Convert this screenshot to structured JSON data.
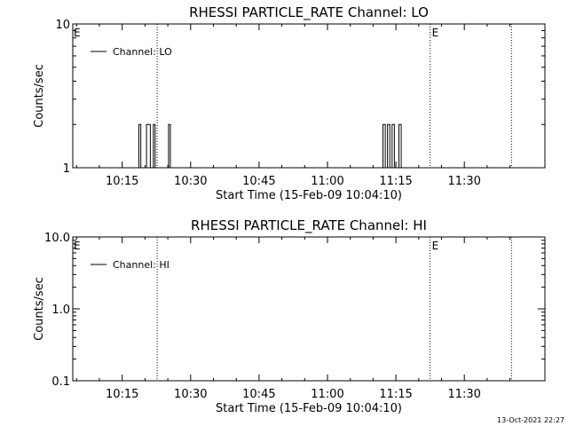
{
  "footer": {
    "timestamp": "13-Oct-2021 22:27"
  },
  "chart_data": [
    {
      "type": "line",
      "title": "RHESSI PARTICLE_RATE Channel: LO",
      "xlabel": "Start Time (15-Feb-09 10:04:10)",
      "ylabel": "Counts/sec",
      "yscale": "log",
      "ylim": [
        1,
        10
      ],
      "y_ticks": [
        "1",
        "10"
      ],
      "x_ticks": [
        "10:15",
        "10:30",
        "10:45",
        "11:00",
        "11:15",
        "11:30"
      ],
      "xlim": [
        "10:04:10",
        "11:47:40"
      ],
      "grid": false,
      "legend": "top-left",
      "legend_label": "Channel: LO",
      "markers": [
        {
          "time": "10:22:40",
          "label": ""
        },
        {
          "time": "11:22:30",
          "label": "E"
        },
        {
          "time": "11:40:20",
          "label": ""
        }
      ],
      "edge_label": "E",
      "series": [
        {
          "name": "Channel: LO",
          "x": [
            "10:18:40",
            "10:19:05",
            "10:20:20",
            "10:21:10",
            "10:21:50",
            "10:22:10",
            "10:25:10",
            "10:25:30",
            "11:12:10",
            "11:12:40",
            "11:13:10",
            "11:13:40",
            "11:14:10",
            "11:14:40",
            "11:15:40",
            "11:16:10"
          ],
          "y": [
            1,
            2,
            1,
            2,
            1,
            2,
            1,
            2,
            1,
            2,
            1,
            2,
            1,
            2,
            1,
            2
          ]
        }
      ]
    },
    {
      "type": "line",
      "title": "RHESSI PARTICLE_RATE Channel: HI",
      "xlabel": "Start Time (15-Feb-09 10:04:10)",
      "ylabel": "Counts/sec",
      "yscale": "log",
      "ylim": [
        0.1,
        10
      ],
      "y_ticks": [
        "0.1",
        "1.0",
        "10.0"
      ],
      "x_ticks": [
        "10:15",
        "10:30",
        "10:45",
        "11:00",
        "11:15",
        "11:30"
      ],
      "xlim": [
        "10:04:10",
        "11:47:40"
      ],
      "grid": false,
      "legend": "top-left",
      "legend_label": "Channel: HI",
      "markers": [
        {
          "time": "10:22:40",
          "label": ""
        },
        {
          "time": "11:22:30",
          "label": "E"
        },
        {
          "time": "11:40:20",
          "label": ""
        }
      ],
      "edge_label": "E",
      "series": [
        {
          "name": "Channel: HI",
          "x": [],
          "y": []
        }
      ]
    }
  ]
}
